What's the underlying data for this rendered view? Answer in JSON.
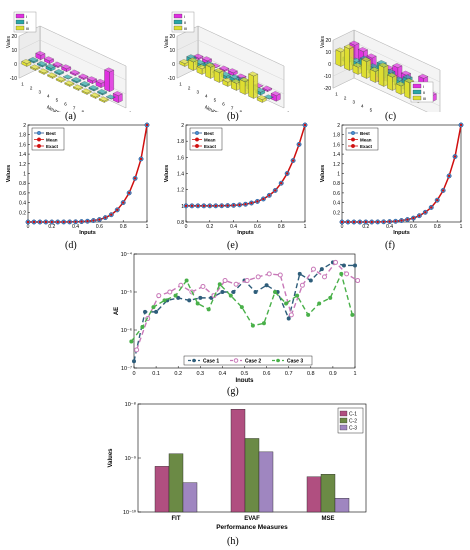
{
  "captions": [
    "(a)",
    "(b)",
    "(c)",
    "(d)",
    "(e)",
    "(f)",
    "(g)",
    "(h)"
  ],
  "colors": {
    "magenta": "#e030e0",
    "teal": "#2aa6a6",
    "yellow": "#dede30",
    "best": "#1f4e8c",
    "mean": "#d01010",
    "exact": "#d01010",
    "case1": "#2e5d7a",
    "case2": "#c878b8",
    "case3": "#49b049",
    "c1": "#b04f80",
    "c2": "#6b8a45",
    "c3": "#9f86c0"
  },
  "bar3d": {
    "ylabel": "Vales",
    "xlabel": "Neurons",
    "legend": [
      "I",
      "II",
      "III"
    ],
    "a": {
      "zticks": [
        "20",
        "10",
        "0",
        "-10"
      ],
      "xticks": [
        "1",
        "2",
        "3",
        "4",
        "5",
        "6",
        "7",
        "8",
        "9",
        "10"
      ],
      "dticks": [
        "1",
        "2",
        "3"
      ]
    },
    "b": {
      "zticks": [
        "20",
        "10",
        "0",
        "-10"
      ],
      "xticks": [
        "1",
        "2",
        "3",
        "4",
        "5",
        "6",
        "7",
        "8",
        "9",
        "10"
      ],
      "dticks": [
        "1",
        "2",
        "3"
      ]
    },
    "c": {
      "zticks": [
        "20",
        "10",
        "0",
        "-10",
        "-20"
      ],
      "xticks": [
        "1",
        "2",
        "3",
        "4",
        "5",
        "6",
        "7",
        "8",
        "9",
        "10"
      ],
      "dticks": [
        "1",
        "2",
        "3"
      ]
    }
  },
  "chart_data": [
    {
      "type": "bar3d",
      "panel": "a",
      "series": [
        {
          "name": "I",
          "values": [
            3,
            2,
            1,
            2,
            1,
            1,
            2,
            3,
            14,
            -5
          ]
        },
        {
          "name": "II",
          "values": [
            1,
            1,
            2,
            1,
            0,
            1,
            1,
            1,
            1,
            0
          ]
        },
        {
          "name": "III",
          "values": [
            2,
            1,
            1,
            1,
            1,
            1,
            1,
            1,
            1,
            1
          ]
        }
      ]
    },
    {
      "type": "bar3d",
      "panel": "b",
      "series": [
        {
          "name": "I",
          "values": [
            1,
            2,
            0,
            1,
            2,
            1,
            0,
            0,
            1,
            -4
          ]
        },
        {
          "name": "II",
          "values": [
            3,
            2,
            4,
            1,
            2,
            3,
            4,
            3,
            2,
            0
          ]
        },
        {
          "name": "III",
          "values": [
            2,
            6,
            4,
            8,
            7,
            3,
            5,
            9,
            16,
            2
          ]
        }
      ]
    },
    {
      "type": "bar3d",
      "panel": "c",
      "series": [
        {
          "name": "I",
          "values": [
            12,
            10,
            8,
            -9,
            5,
            10,
            7,
            -8,
            11,
            -5
          ]
        },
        {
          "name": "II",
          "values": [
            3,
            4,
            9,
            6,
            12,
            8,
            5,
            10,
            3,
            4
          ]
        },
        {
          "name": "III",
          "values": [
            12,
            18,
            6,
            14,
            9,
            16,
            11,
            7,
            13,
            5
          ]
        }
      ]
    },
    {
      "type": "line",
      "panel": "d",
      "xlabel": "Inputs",
      "ylabel": "Values",
      "ylim": [
        0,
        2
      ],
      "xticks": [
        "0",
        "0.2",
        "0.4",
        "0.6",
        "0.8",
        "1"
      ],
      "yticks": [
        "0.2",
        "0.4",
        "0.6",
        "0.8",
        "1",
        "1.2",
        "1.4",
        "1.6",
        "1.8",
        "2"
      ],
      "x": [
        0,
        0.05,
        0.1,
        0.15,
        0.2,
        0.25,
        0.3,
        0.35,
        0.4,
        0.45,
        0.5,
        0.55,
        0.6,
        0.65,
        0.7,
        0.75,
        0.8,
        0.85,
        0.9,
        0.95,
        1
      ],
      "series": [
        {
          "name": "Best",
          "values": [
            0,
            0,
            0,
            0,
            0,
            0,
            0.001,
            0.002,
            0.004,
            0.008,
            0.016,
            0.03,
            0.05,
            0.09,
            0.15,
            0.25,
            0.4,
            0.6,
            0.9,
            1.3,
            2
          ]
        },
        {
          "name": "Mean",
          "values": [
            0,
            0,
            0,
            0,
            0,
            0,
            0.001,
            0.002,
            0.004,
            0.008,
            0.016,
            0.03,
            0.05,
            0.09,
            0.15,
            0.25,
            0.4,
            0.6,
            0.9,
            1.3,
            2
          ]
        },
        {
          "name": "Exact",
          "values": [
            0,
            0,
            0,
            0,
            0,
            0,
            0.001,
            0.002,
            0.004,
            0.008,
            0.016,
            0.03,
            0.05,
            0.09,
            0.15,
            0.25,
            0.4,
            0.6,
            0.9,
            1.3,
            2
          ]
        }
      ]
    },
    {
      "type": "line",
      "panel": "e",
      "xlabel": "Inputs",
      "ylabel": "Values",
      "ylim": [
        0.8,
        2
      ],
      "xticks": [
        "0",
        "0.2",
        "0.4",
        "0.6",
        "0.8",
        "1"
      ],
      "yticks": [
        "0.8",
        "1",
        "1.2",
        "1.4",
        "1.6",
        "1.8",
        "2"
      ],
      "x": [
        0,
        0.05,
        0.1,
        0.15,
        0.2,
        0.25,
        0.3,
        0.35,
        0.4,
        0.45,
        0.5,
        0.55,
        0.6,
        0.65,
        0.7,
        0.75,
        0.8,
        0.85,
        0.9,
        0.95,
        1
      ],
      "series": [
        {
          "name": "Best",
          "values": [
            1,
            1,
            1,
            1,
            1,
            1,
            1.001,
            1.003,
            1.006,
            1.012,
            1.02,
            1.035,
            1.055,
            1.085,
            1.13,
            1.19,
            1.28,
            1.4,
            1.56,
            1.76,
            2
          ]
        },
        {
          "name": "Mean",
          "values": [
            1,
            1,
            1,
            1,
            1,
            1,
            1.001,
            1.003,
            1.006,
            1.012,
            1.02,
            1.035,
            1.055,
            1.085,
            1.13,
            1.19,
            1.28,
            1.4,
            1.56,
            1.76,
            2
          ]
        },
        {
          "name": "Exact",
          "values": [
            1,
            1,
            1,
            1,
            1,
            1,
            1.001,
            1.003,
            1.006,
            1.012,
            1.02,
            1.035,
            1.055,
            1.085,
            1.13,
            1.19,
            1.28,
            1.4,
            1.56,
            1.76,
            2
          ]
        }
      ]
    },
    {
      "type": "line",
      "panel": "f",
      "xlabel": "Inputs",
      "ylabel": "Values",
      "ylim": [
        0,
        2
      ],
      "xticks": [
        "0",
        "0.2",
        "0.4",
        "0.6",
        "0.8",
        "1"
      ],
      "yticks": [
        "0.2",
        "0.4",
        "0.6",
        "0.8",
        "1",
        "1.2",
        "1.4",
        "1.6",
        "1.8",
        "2"
      ],
      "x": [
        0,
        0.05,
        0.1,
        0.15,
        0.2,
        0.25,
        0.3,
        0.35,
        0.4,
        0.45,
        0.5,
        0.55,
        0.6,
        0.65,
        0.7,
        0.75,
        0.8,
        0.85,
        0.9,
        0.95,
        1
      ],
      "series": [
        {
          "name": "Best",
          "values": [
            0,
            0,
            0,
            0,
            0,
            0,
            0.002,
            0.004,
            0.008,
            0.015,
            0.03,
            0.05,
            0.08,
            0.13,
            0.2,
            0.3,
            0.45,
            0.65,
            0.95,
            1.35,
            2
          ]
        },
        {
          "name": "Mean",
          "values": [
            0,
            0,
            0,
            0,
            0,
            0,
            0.002,
            0.004,
            0.008,
            0.015,
            0.03,
            0.05,
            0.08,
            0.13,
            0.2,
            0.3,
            0.45,
            0.65,
            0.95,
            1.35,
            2
          ]
        },
        {
          "name": "Exact",
          "values": [
            0,
            0,
            0,
            0,
            0,
            0,
            0.002,
            0.004,
            0.008,
            0.015,
            0.03,
            0.05,
            0.08,
            0.13,
            0.2,
            0.3,
            0.45,
            0.65,
            0.95,
            1.35,
            2
          ]
        }
      ]
    },
    {
      "type": "line",
      "panel": "g",
      "scale": "log",
      "xlabel": "Inputs",
      "ylabel": "AE",
      "ylim": [
        1e-07,
        0.0001
      ],
      "xticks": [
        "0",
        "0.1",
        "0.2",
        "0.3",
        "0.4",
        "0.5",
        "0.6",
        "0.7",
        "0.8",
        "0.9",
        "1"
      ],
      "yticks": [
        "10⁻⁷",
        "10⁻⁶",
        "10⁻⁵",
        "10⁻⁴"
      ],
      "x": [
        0,
        0.05,
        0.1,
        0.15,
        0.2,
        0.25,
        0.3,
        0.35,
        0.4,
        0.45,
        0.5,
        0.55,
        0.6,
        0.65,
        0.7,
        0.75,
        0.8,
        0.85,
        0.9,
        0.95,
        1
      ],
      "series": [
        {
          "name": "Case 1",
          "values": [
            1.5e-07,
            3e-06,
            3e-06,
            6e-06,
            7e-06,
            6e-06,
            7e-06,
            7e-06,
            1e-05,
            1e-05,
            2e-05,
            1e-05,
            1.5e-05,
            1e-05,
            2e-06,
            3e-05,
            2e-05,
            4e-05,
            6e-05,
            5e-05,
            5e-05
          ]
        },
        {
          "name": "Case 2",
          "values": [
            3e-07,
            2e-06,
            8e-06,
            1e-05,
            1.5e-05,
            1e-05,
            1.4e-05,
            8e-06,
            2e-05,
            1.6e-05,
            2e-05,
            2.5e-05,
            3e-05,
            2.8e-05,
            2.5e-06,
            1.5e-05,
            4e-05,
            2.5e-05,
            6e-05,
            3e-05,
            2e-05
          ]
        },
        {
          "name": "Case 3",
          "values": [
            5e-07,
            1.2e-06,
            4e-06,
            6e-06,
            8e-06,
            2e-05,
            5e-06,
            3.5e-06,
            1.6e-05,
            8e-06,
            4e-06,
            1.3e-06,
            1.5e-06,
            1e-05,
            5e-06,
            8e-06,
            2.5e-06,
            5e-06,
            7e-06,
            3e-05,
            2.5e-06
          ]
        }
      ]
    },
    {
      "type": "bar",
      "panel": "h",
      "scale": "log",
      "xlabel": "Performance Measures",
      "ylabel": "Values",
      "categories": [
        "FIT",
        "EVAF",
        "MSE"
      ],
      "ylim": [
        1e-10,
        1e-08
      ],
      "yticks": [
        "10⁻¹⁰",
        "10⁻⁹",
        "10⁻⁸"
      ],
      "series": [
        {
          "name": "C-1",
          "values": [
            7e-10,
            8e-09,
            4.5e-10
          ]
        },
        {
          "name": "C-2",
          "values": [
            1.2e-09,
            2.3e-09,
            5e-10
          ]
        },
        {
          "name": "C-3",
          "values": [
            3.5e-10,
            1.3e-09,
            1.8e-10
          ]
        }
      ]
    }
  ]
}
